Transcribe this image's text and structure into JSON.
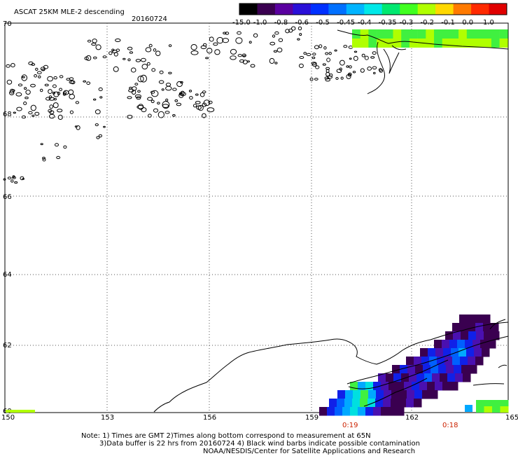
{
  "header": {
    "title": "ASCAT 25KM MLE-2 descending",
    "date": "20160724"
  },
  "colorbar": {
    "labels": [
      "-15.0",
      "-1.0",
      "-0.8",
      "-0.6",
      "-0.5",
      "-0.45",
      "-0.4",
      "-0.35",
      "-0.3",
      "-0.2",
      "-0.1",
      "0.0",
      "1.0"
    ],
    "colors": [
      "#000000",
      "#3a0050",
      "#5a00a0",
      "#2a10d8",
      "#0030ff",
      "#0070ff",
      "#00b4ff",
      "#00e8e8",
      "#00e870",
      "#40ff20",
      "#b0ff00",
      "#ffd800",
      "#ff7a00",
      "#ff2a00",
      "#e00000"
    ]
  },
  "axes": {
    "lat_labels": [
      "70",
      "68",
      "66",
      "64",
      "62",
      "60"
    ],
    "lon_labels": [
      "150",
      "153",
      "156",
      "159",
      "162",
      "165"
    ]
  },
  "time_labels": [
    "0:19",
    "0:18"
  ],
  "notes": {
    "line1": "Note: 1) Times are GMT 2)Times along bottom correspond to measurement at 65N",
    "line2": "3)Data buffer is 22 hrs from 20160724 4) Black wind barbs indicate possible contamination",
    "line3": "NOAA/NESDIS/Center for Satellite Applications and Research"
  }
}
